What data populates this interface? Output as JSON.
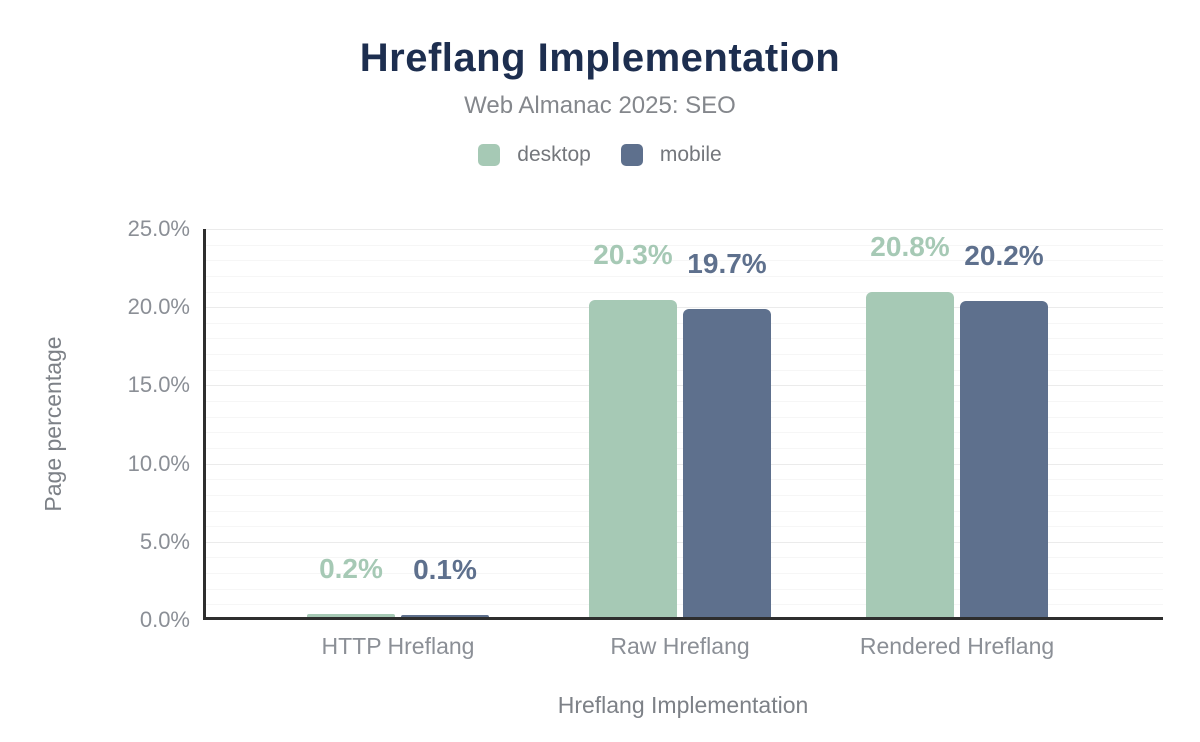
{
  "header": {
    "title": "Hreflang Implementation",
    "subtitle": "Web Almanac 2025: SEO"
  },
  "legend": {
    "items": [
      {
        "label": "desktop",
        "color": "#a6c9b5"
      },
      {
        "label": "mobile",
        "color": "#5e708d"
      }
    ]
  },
  "chart_data": {
    "type": "bar",
    "title": "Hreflang Implementation",
    "subtitle": "Web Almanac 2025: SEO",
    "categories": [
      "HTTP Hreflang",
      "Raw Hreflang",
      "Rendered Hreflang"
    ],
    "series": [
      {
        "name": "desktop",
        "color": "#a6c9b5",
        "values": [
          0.2,
          20.3,
          20.8
        ],
        "labels": [
          "0.2%",
          "20.3%",
          "20.8%"
        ]
      },
      {
        "name": "mobile",
        "color": "#5e708d",
        "values": [
          0.1,
          19.7,
          20.2
        ],
        "labels": [
          "0.1%",
          "19.7%",
          "20.2%"
        ]
      }
    ],
    "xlabel": "Hreflang Implementation",
    "ylabel": "Page percentage",
    "ylim": [
      0,
      25
    ],
    "ytick_labels": [
      "0.0%",
      "5.0%",
      "10.0%",
      "15.0%",
      "20.0%",
      "25.0%"
    ],
    "grid": "horizontal, minor every 1%, major every 5%",
    "legend_position": "top"
  },
  "colors": {
    "background": "#ffffff",
    "title": "#1d2e4f",
    "subtitle": "#84878c",
    "legend_text": "#74777c",
    "axis_text": "#8b8f96",
    "axis_title_text": "#7d8187",
    "axis_line": "#2e2e2e",
    "grid_major": "#ebebeb",
    "grid_minor": "#f6f6f6",
    "desktop": "#a6c9b5",
    "mobile": "#5e708d"
  }
}
